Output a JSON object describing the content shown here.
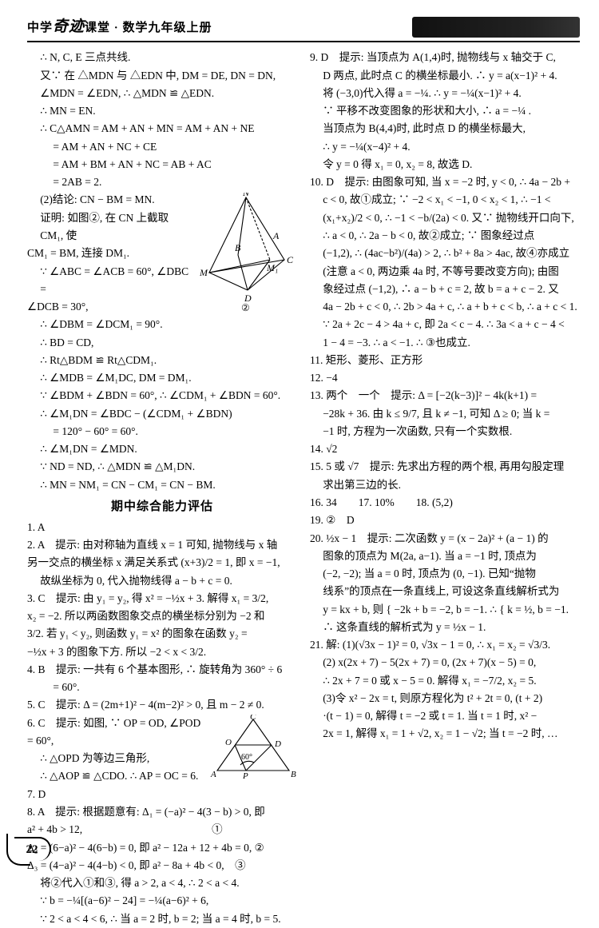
{
  "header": {
    "title_a": "中学",
    "title_b": "奇迹",
    "title_c": "课堂 · 数学九年级上册"
  },
  "page_number": "22",
  "left": [
    "∴ N, C, E 三点共线.",
    "又∵ 在 △MDN 与 △EDN 中, DM = DE, DN = DN,",
    "∠MDN = ∠EDN, ∴ △MDN ≌ △EDN.",
    "∴ MN = EN.",
    "∴ C△AMN = AM + AN + MN = AM + AN + NE",
    "= AM + AN + NC + CE",
    "= AM + BM + AN + NC = AB + AC",
    "= 2AB = 2.",
    "(2)结论: CN − BM = MN.",
    "证明: 如图②, 在 CN 上截取 CM₁, 使",
    "CM₁ = BM, 连接 DM₁.",
    "∵ ∠ABC = ∠ACB = 60°, ∠DBC =",
    "∠DCB = 30°,",
    "∴ ∠DBM = ∠DCM₁ = 90°.",
    "∴ BD = CD,",
    "∴ Rt△BDM ≌ Rt△CDM₁.",
    "∴ ∠MDB = ∠M₁DC, DM = DM₁.",
    "∵ ∠BDM + ∠BDN = 60°, ∴ ∠CDM₁ + ∠BDN = 60°.",
    "∴ ∠M₁DN = ∠BDC − (∠CDM₁ + ∠BDN)",
    "= 120° − 60° = 60°.",
    "∴ ∠M₁DN = ∠MDN.",
    "∵ ND = ND, ∴ △MDN ≌ △M₁DN.",
    "∴ MN = NM₁ = CN − CM₁ = CN − BM.",
    "__HEAD__期中综合能力评估",
    "1. A",
    "2. A　提示: 由对称轴为直线 x = 1 可知, 抛物线与 x 轴",
    "另一交点的横坐标 x 满足关系式 (x+3)/2 = 1, 即 x = −1,",
    "故纵坐标为 0, 代入抛物线得 a − b + c = 0.",
    "3. C　提示: 由 y₁ = y₂, 得 x² = −½x + 3. 解得 x₁ = 3/2,",
    "x₂ = −2. 所以两函数图象交点的横坐标分别为 −2 和",
    "3/2. 若 y₁ < y₂, 则函数 y₁ = x² 的图象在函数 y₂ =",
    "−½x + 3 的图象下方. 所以 −2 < x < 3/2.",
    "4. B　提示: 一共有 6 个基本图形, ∴ 旋转角为 360° ÷ 6",
    "= 60°.",
    "5. C　提示: Δ = (2m+1)² − 4(m−2)² > 0, 且 m − 2 ≠ 0.",
    "6. C　提示: 如图, ∵ OP = OD, ∠POD = 60°,",
    "∴ △OPD 为等边三角形,",
    "∴ △AOP ≌ △CDO. ∴ AP = OC = 6.",
    "7. D",
    "8. A　提示: 根据题意有: Δ₁ = (−a)² − 4(3 − b) > 0, 即",
    "a² + 4b > 12,　　　　　　　　　　　　①",
    "Δ₂ = (6−a)² − 4(6−b) = 0, 即 a² − 12a + 12 + 4b = 0, ②",
    "Δ₃ = (4−a)² − 4(4−b) < 0, 即 a² − 8a + 4b < 0,　③",
    "将②代入①和③, 得 a > 2, a < 4, ∴ 2 < a < 4.",
    "∵ b = −¼[(a−6)² − 24] = −¼(a−6)² + 6,",
    "∵ 2 < a < 4 < 6, ∴ 当 a = 2 时, b = 2; 当 a = 4 时, b = 5."
  ],
  "right": [
    "9. D　提示: 当顶点为 A(1,4)时, 抛物线与 x 轴交于 C,",
    "D 两点, 此时点 C 的横坐标最小. ∴ y = a(x−1)² + 4.",
    "将 (−3,0)代入得 a = −¼. ∴ y = −¼(x−1)² + 4.",
    "∵ 平移不改变图象的形状和大小, ∴ a = −¼ .",
    "当顶点为 B(4,4)时, 此时点 D 的横坐标最大,",
    "∴ y = −¼(x−4)² + 4.",
    "令 y = 0 得 x₁ = 0, x₂ = 8, 故选 D.",
    "10. D　提示: 由图象可知, 当 x = −2 时, y < 0, ∴ 4a − 2b +",
    "c < 0, 故①成立; ∵ −2 < x₁ < −1, 0 < x₂ < 1, ∴ −1 <",
    "(x₁+x₂)/2 < 0, ∴ −1 < −b/(2a) < 0. 又∵ 抛物线开口向下,",
    "∴ a < 0, ∴ 2a − b < 0, 故②成立; ∵ 图象经过点",
    "(−1,2), ∴ (4ac−b²)/(4a) > 2, ∴ b² + 8a > 4ac, 故④亦成立",
    "(注意 a < 0, 两边乘 4a 时, 不等号要改变方向); 由图",
    "象经过点 (−1,2), ∴ a − b + c = 2, 故 b = a + c − 2. 又",
    "4a − 2b + c < 0, ∴ 2b > 4a + c, ∴ a + b + c < b, ∴ a + c < 1.",
    "∵ 2a + 2c − 4 > 4a + c, 即 2a < c − 4. ∴ 3a < a + c − 4 <",
    "1 − 4 = −3. ∴ a < −1. ∴ ③也成立.",
    "11. 矩形、菱形、正方形",
    "12. −4",
    "13. 两个　一个　提示: Δ = [−2(k−3)]² − 4k(k+1) =",
    "−28k + 36. 由 k ≤ 9/7, 且 k ≠ −1, 可知 Δ ≥ 0; 当 k =",
    "−1 时, 方程为一次函数, 只有一个实数根.",
    "14. √2",
    "15. 5 或 √7　提示: 先求出方程的两个根, 再用勾股定理",
    "求出第三边的长.",
    "16. 34　　17. 10%　　18. (5,2)",
    "19. ②　D",
    "20. ½x − 1　提示: 二次函数 y = (x − 2a)² + (a − 1) 的",
    "图象的顶点为 M(2a, a−1). 当 a = −1 时, 顶点为",
    "(−2, −2); 当 a = 0 时, 顶点为 (0, −1). 已知“抛物",
    "线系”的顶点在一条直线上, 可设这条直线解析式为",
    "y = kx + b, 则 { −2k + b = −2,  b = −1.  ∴ { k = ½, b = −1.",
    "∴ 这条直线的解析式为 y = ½x − 1.",
    "21. 解: (1)(√3x − 1)² = 0, √3x − 1 = 0, ∴ x₁ = x₂ = √3/3.",
    "(2) x(2x + 7) − 5(2x + 7) = 0, (2x + 7)(x − 5) = 0,",
    "∴ 2x + 7 = 0 或 x − 5 = 0. 解得 x₁ = −7/2, x₂ = 5.",
    "(3)令 x² − 2x = t, 则原方程化为 t² + 2t = 0, (t + 2)",
    "·(t − 1) = 0, 解得 t = −2 或 t = 1. 当 t = 1 时, x² −",
    "2x = 1, 解得 x₁ = 1 + √2, x₂ = 1 − √2; 当 t = −2 时, …"
  ],
  "dia1": {
    "labels": {
      "N": "N",
      "A": "A",
      "B": "B",
      "C": "C",
      "M": "M",
      "M1": "M₁",
      "D": "D",
      "cap": "②"
    }
  },
  "dia2": {
    "labels": {
      "C": "C",
      "O": "O",
      "D": "D",
      "A": "A",
      "P": "P",
      "B": "B",
      "ang": "60°"
    }
  }
}
